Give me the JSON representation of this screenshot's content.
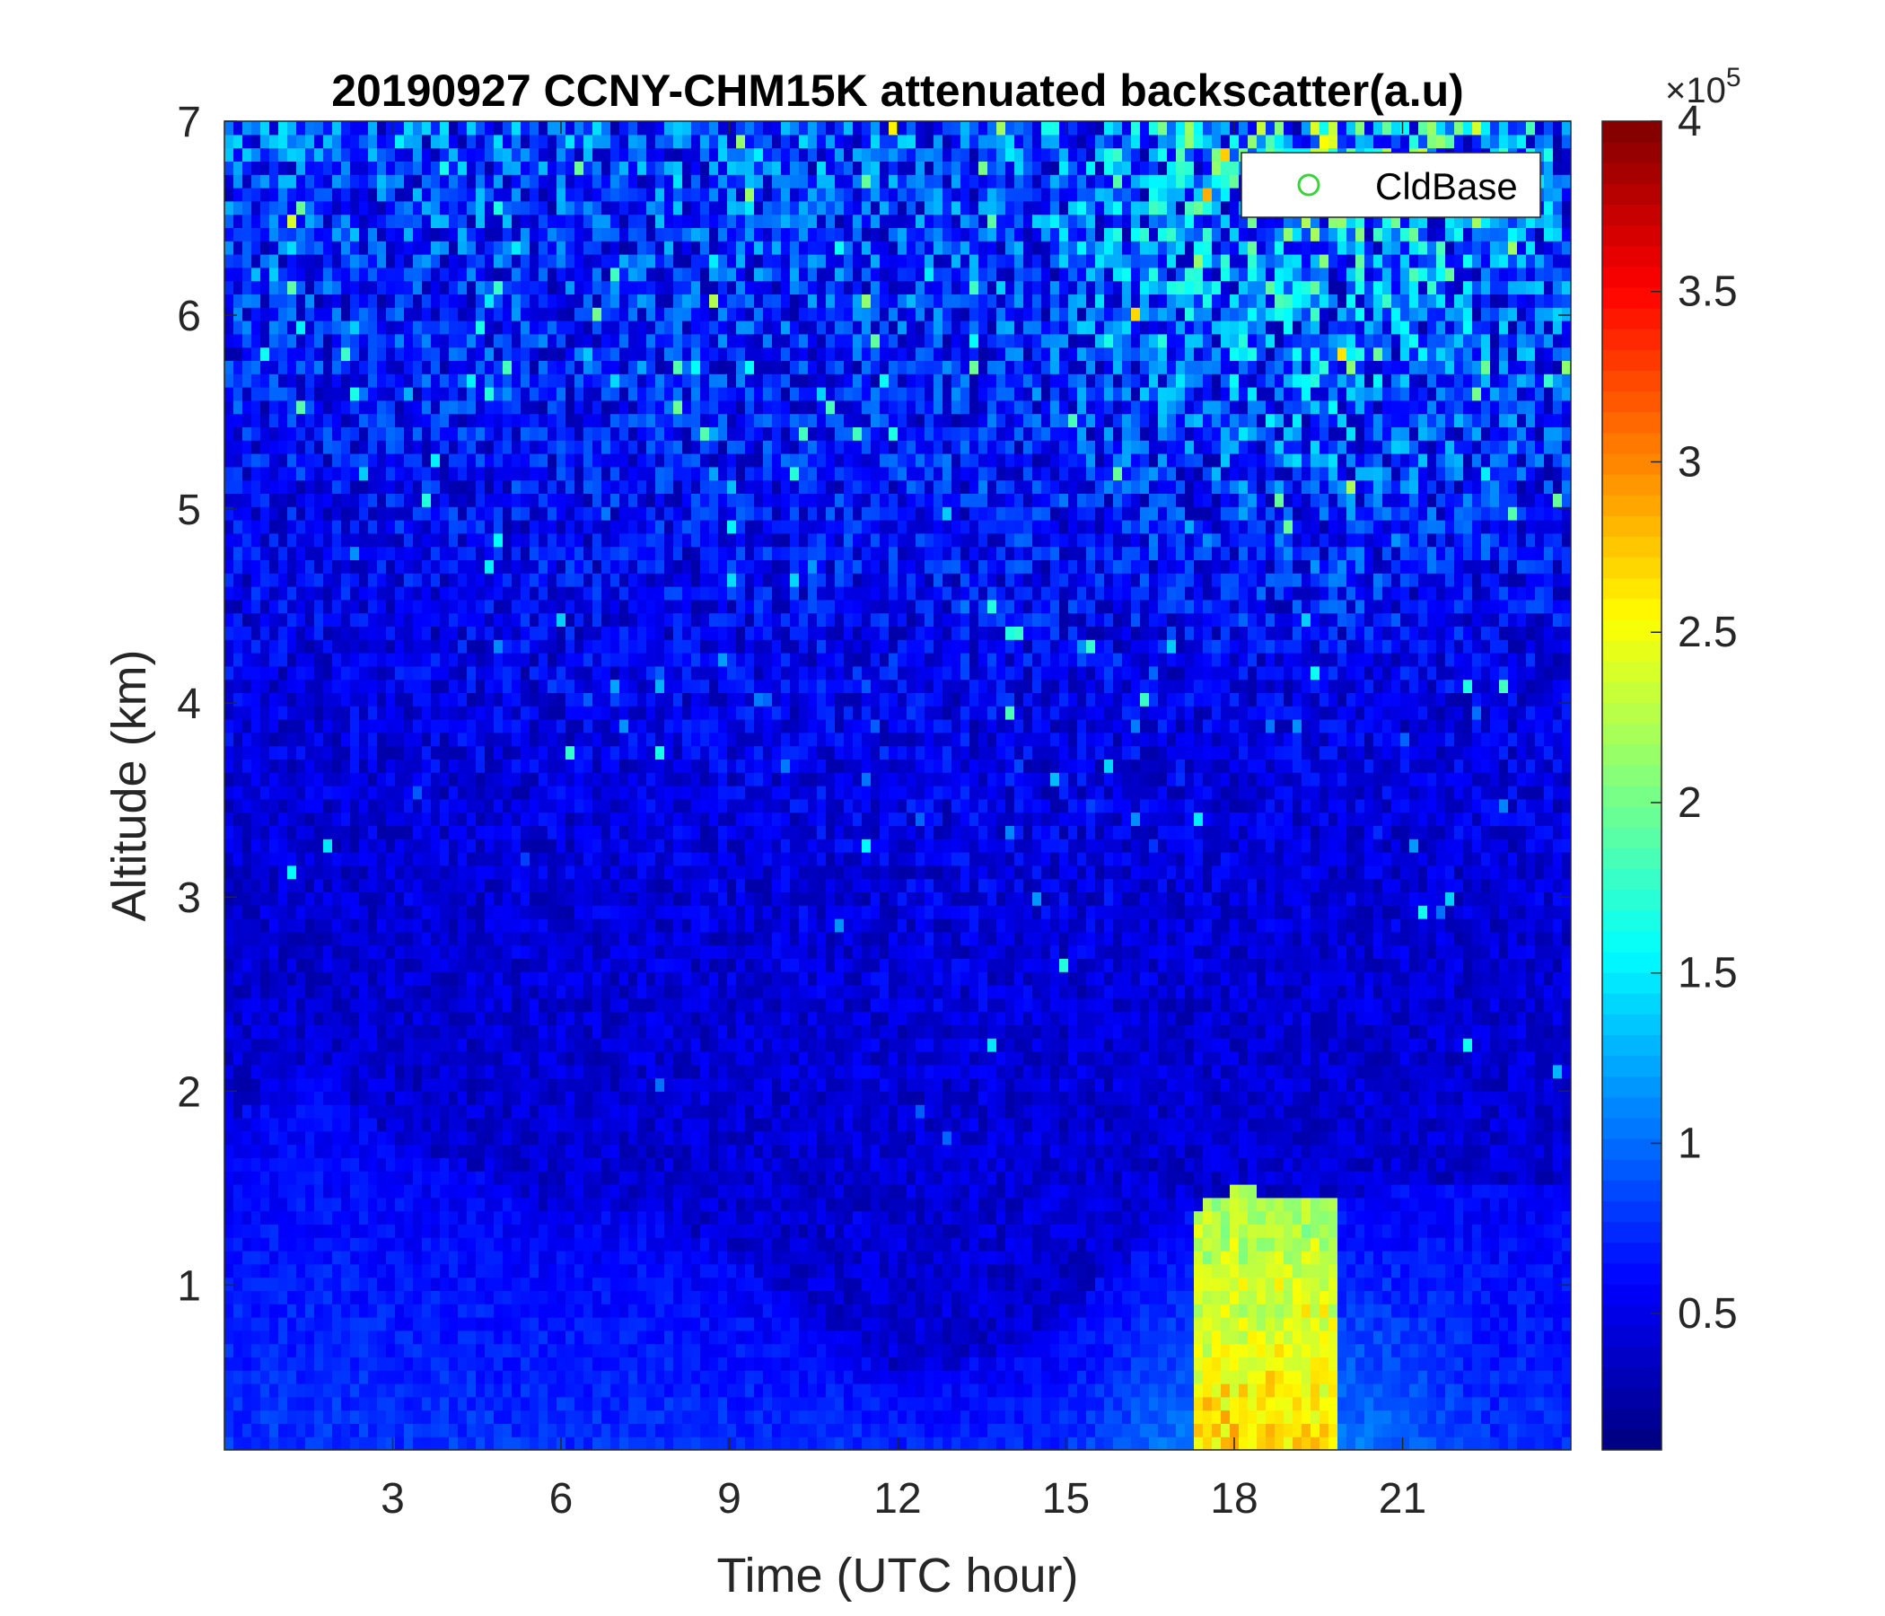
{
  "chart_data": {
    "type": "heatmap",
    "title": "20190927 CCNY-CHM15K attenuated backscatter(a.u)",
    "xlabel": "Time (UTC hour)",
    "ylabel": "Altitude (km)",
    "xlim": [
      0,
      24
    ],
    "ylim": [
      0.15,
      7
    ],
    "xticks": [
      3,
      6,
      9,
      12,
      15,
      18,
      21
    ],
    "yticks": [
      1,
      2,
      3,
      4,
      5,
      6,
      7
    ],
    "colormap": "jet",
    "colorbar": {
      "range": [
        0.1,
        4
      ],
      "ticks": [
        0.5,
        1,
        1.5,
        2,
        2.5,
        3,
        3.5,
        4
      ],
      "tick_labels": [
        "0.5",
        "1",
        "1.5",
        "2",
        "2.5",
        "3",
        "3.5",
        "4"
      ],
      "multiplier_prefix": "×10",
      "multiplier_exponent": "5"
    },
    "legend": {
      "position": "top-right",
      "entries": [
        {
          "name": "CldBase",
          "marker": "circle",
          "color": "#3cd23c"
        }
      ]
    },
    "aerosol_layer_top_km": [
      [
        0,
        1.8
      ],
      [
        1.5,
        2.2
      ],
      [
        3,
        1.75
      ],
      [
        4.5,
        1.6
      ],
      [
        6,
        1.35
      ],
      [
        7.5,
        1.4
      ],
      [
        9,
        1.15
      ],
      [
        10.5,
        0.85
      ],
      [
        12,
        0.55
      ],
      [
        13.5,
        0.6
      ],
      [
        15,
        0.85
      ],
      [
        16.5,
        1.25
      ],
      [
        18,
        1.5
      ],
      [
        19.5,
        1.45
      ],
      [
        21,
        1.5
      ],
      [
        22.5,
        1.55
      ],
      [
        24,
        1.55
      ]
    ],
    "boundary_layer_peak": {
      "x_range_hours": [
        17.3,
        19.8
      ],
      "value_range_1e5": [
        2.0,
        3.6
      ]
    },
    "upper_noise_increase": {
      "x_center_hours": 19.5,
      "altitude_range_km": [
        4,
        7
      ]
    }
  }
}
